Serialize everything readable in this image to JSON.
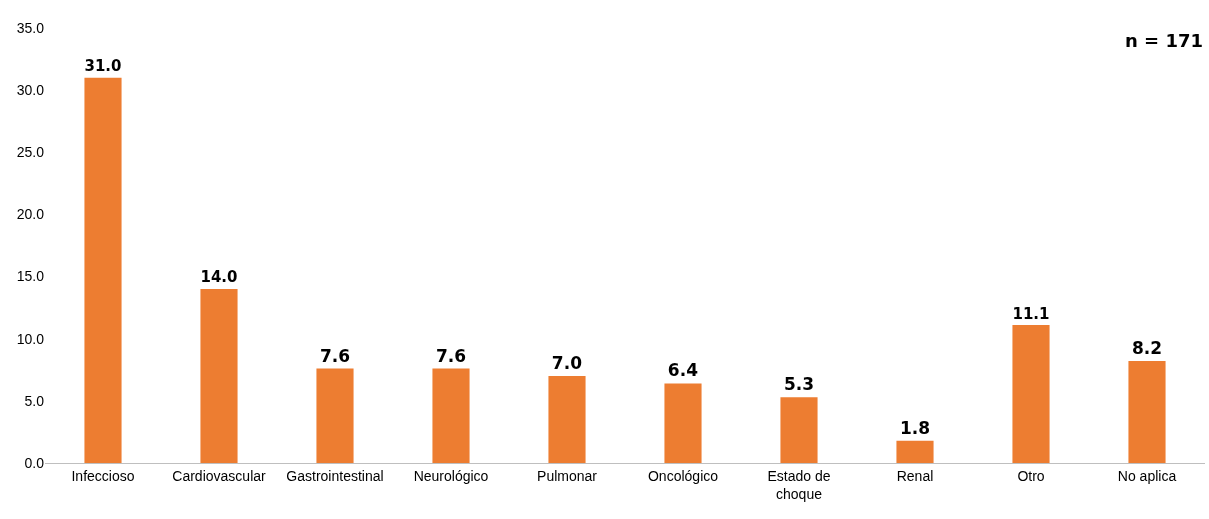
{
  "chart_data": {
    "type": "bar",
    "categories": [
      "Infeccioso",
      "Cardiovascular",
      "Gastrointestinal",
      "Neurológico",
      "Pulmonar",
      "Oncológico",
      "Estado de choque",
      "Renal",
      "Otro",
      "No aplica"
    ],
    "values": [
      31.0,
      14.0,
      7.6,
      7.6,
      7.0,
      6.4,
      5.3,
      1.8,
      11.1,
      8.2
    ],
    "color": "#ed7d31",
    "ylim": [
      0,
      35
    ],
    "yticks": [
      {
        "value": 0,
        "label": "0.0"
      },
      {
        "value": 5,
        "label": "5.0"
      },
      {
        "value": 10,
        "label": "10.0"
      },
      {
        "value": 15,
        "label": "15.0"
      },
      {
        "value": 20,
        "label": "20.0"
      },
      {
        "value": 25,
        "label": "25.0"
      },
      {
        "value": 30,
        "label": "30.0"
      },
      {
        "value": 35,
        "label": "35.0"
      }
    ],
    "value_labels": [
      "31.0",
      "14.0",
      "7.6",
      "7.6",
      "7.0",
      "6.4",
      "5.3",
      "1.8",
      "11.1",
      "8.2"
    ],
    "annotations": [
      "n = 171"
    ],
    "grid": false
  }
}
